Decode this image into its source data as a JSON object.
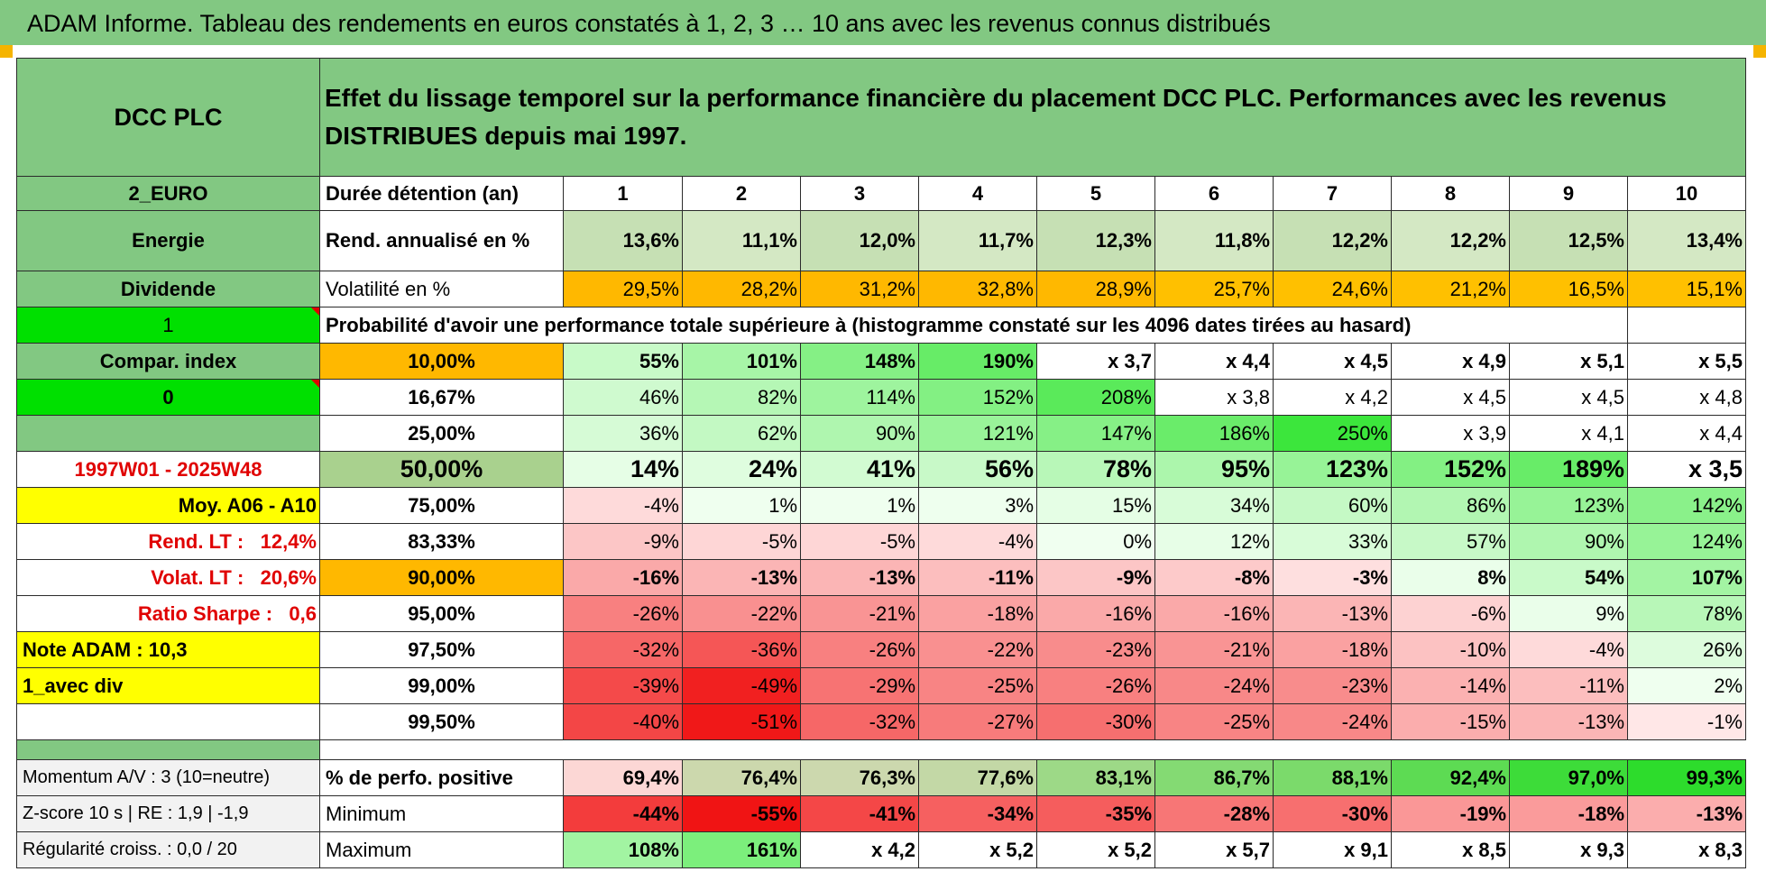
{
  "page_title": "ADAM Informe. Tableau des rendements en euros constatés à 1, 2, 3 … 10 ans avec les revenus connus distribués",
  "header": {
    "name": "DCC PLC",
    "description": "Effet du lissage temporel sur la performance financière du placement DCC PLC. Performances avec les revenus DISTRIBUES depuis mai 1997."
  },
  "left_labels": {
    "currency": "2_EURO",
    "sector": "Energie",
    "type": "Dividende",
    "flag1": "1",
    "compar_index": "Compar. index",
    "flag0": "0",
    "period": "1997W01 - 2025W48",
    "moy": "Moy. A06 - A10",
    "rend_lt_label": "Rend. LT :",
    "rend_lt_value": "12,4%",
    "volat_lt_label": "Volat. LT :",
    "volat_lt_value": "20,6%",
    "sharpe_label": "Ratio Sharpe :",
    "sharpe_value": "0,6",
    "note_adam": "Note ADAM : 10,3",
    "avec_div": "1_avec div"
  },
  "duration_label": "Durée détention (an)",
  "years": [
    "1",
    "2",
    "3",
    "4",
    "5",
    "6",
    "7",
    "8",
    "9",
    "10"
  ],
  "rend_label": "Rend. annualisé en %",
  "rend": [
    "13,6%",
    "11,1%",
    "12,0%",
    "11,7%",
    "12,3%",
    "11,8%",
    "12,2%",
    "12,2%",
    "12,5%",
    "13,4%"
  ],
  "vol_label": "Volatilité en %",
  "vol": [
    "29,5%",
    "28,2%",
    "31,2%",
    "32,8%",
    "28,9%",
    "25,7%",
    "24,6%",
    "21,2%",
    "16,5%",
    "15,1%"
  ],
  "prob_title": "Probabilité d'avoir une performance totale supérieure à (histogramme constaté sur les 4096 dates tirées au hasard)",
  "prob_rows": [
    {
      "pct": "10,00%",
      "values": [
        "55%",
        "101%",
        "148%",
        "190%",
        "x 3,7",
        "x 4,4",
        "x 4,5",
        "x 4,9",
        "x 5,1",
        "x 5,5"
      ]
    },
    {
      "pct": "16,67%",
      "values": [
        "46%",
        "82%",
        "114%",
        "152%",
        "208%",
        "x 3,8",
        "x 4,2",
        "x 4,5",
        "x 4,5",
        "x 4,8"
      ]
    },
    {
      "pct": "25,00%",
      "values": [
        "36%",
        "62%",
        "90%",
        "121%",
        "147%",
        "186%",
        "250%",
        "x 3,9",
        "x 4,1",
        "x 4,4"
      ]
    },
    {
      "pct": "50,00%",
      "values": [
        "14%",
        "24%",
        "41%",
        "56%",
        "78%",
        "95%",
        "123%",
        "152%",
        "189%",
        "x 3,5"
      ]
    },
    {
      "pct": "75,00%",
      "values": [
        "-4%",
        "1%",
        "1%",
        "3%",
        "15%",
        "34%",
        "60%",
        "86%",
        "123%",
        "142%"
      ]
    },
    {
      "pct": "83,33%",
      "values": [
        "-9%",
        "-5%",
        "-5%",
        "-4%",
        "0%",
        "12%",
        "33%",
        "57%",
        "90%",
        "124%"
      ]
    },
    {
      "pct": "90,00%",
      "values": [
        "-16%",
        "-13%",
        "-13%",
        "-11%",
        "-9%",
        "-8%",
        "-3%",
        "8%",
        "54%",
        "107%"
      ]
    },
    {
      "pct": "95,00%",
      "values": [
        "-26%",
        "-22%",
        "-21%",
        "-18%",
        "-16%",
        "-16%",
        "-13%",
        "-6%",
        "9%",
        "78%"
      ]
    },
    {
      "pct": "97,50%",
      "values": [
        "-32%",
        "-36%",
        "-26%",
        "-22%",
        "-23%",
        "-21%",
        "-18%",
        "-10%",
        "-4%",
        "26%"
      ]
    },
    {
      "pct": "99,00%",
      "values": [
        "-39%",
        "-49%",
        "-29%",
        "-25%",
        "-26%",
        "-24%",
        "-23%",
        "-14%",
        "-11%",
        "2%"
      ]
    },
    {
      "pct": "99,50%",
      "values": [
        "-40%",
        "-51%",
        "-32%",
        "-27%",
        "-30%",
        "-25%",
        "-24%",
        "-15%",
        "-13%",
        "-1%"
      ]
    }
  ],
  "bottom": {
    "momentum": "Momentum A/V : 3 (10=neutre)",
    "zscore": "Z-score 10 s | RE : 1,9 | -1,9",
    "regularite": "Régularité croiss. : 0,0 / 20",
    "pos_label": "% de perfo. positive",
    "pos": [
      "69,4%",
      "76,4%",
      "76,3%",
      "77,6%",
      "83,1%",
      "86,7%",
      "88,1%",
      "92,4%",
      "97,0%",
      "99,3%"
    ],
    "min_label": "Minimum",
    "min": [
      "-44%",
      "-55%",
      "-41%",
      "-34%",
      "-35%",
      "-28%",
      "-30%",
      "-19%",
      "-18%",
      "-13%"
    ],
    "max_label": "Maximum",
    "max": [
      "108%",
      "161%",
      "x 4,2",
      "x 5,2",
      "x 5,2",
      "x 5,7",
      "x 9,1",
      "x 8,5",
      "x 9,3",
      "x 8,3"
    ]
  },
  "colors": {
    "header_green": "#82c882",
    "lime": "#00e000",
    "yellow": "#ffff00",
    "orange": "#ffb800",
    "red_text": "#e00000"
  }
}
